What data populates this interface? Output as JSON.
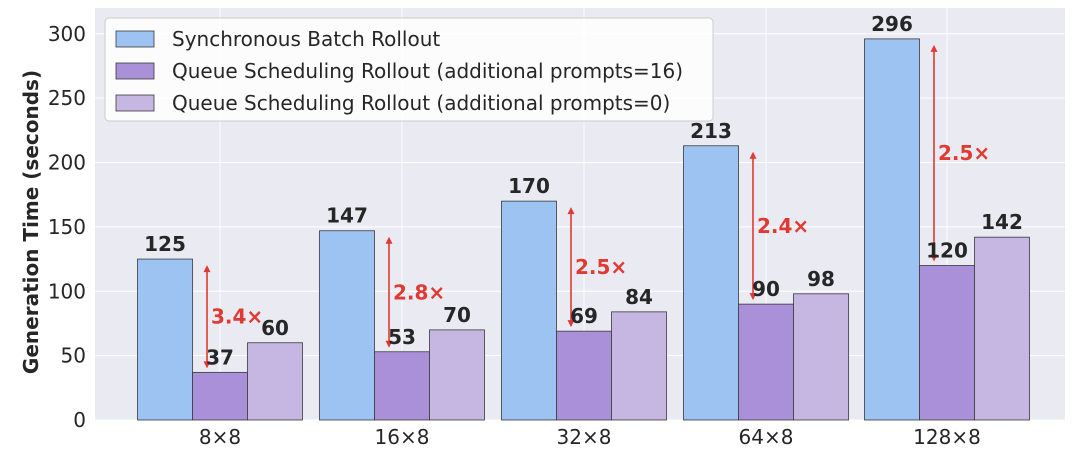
{
  "chart_data": {
    "type": "bar",
    "title": "",
    "xlabel": "",
    "ylabel": "Generation Time (seconds)",
    "ylim": [
      0,
      320
    ],
    "yticks": [
      0,
      50,
      100,
      150,
      200,
      250,
      300
    ],
    "categories": [
      "8×8",
      "16×8",
      "32×8",
      "64×8",
      "128×8"
    ],
    "series": [
      {
        "name": "Synchronous Batch Rollout",
        "values": [
          125,
          147,
          170,
          213,
          296
        ],
        "color": "#9dc3f2"
      },
      {
        "name": "Queue Scheduling Rollout (additional prompts=16)",
        "values": [
          37,
          53,
          69,
          90,
          120
        ],
        "color": "#a990d8"
      },
      {
        "name": "Queue Scheduling Rollout (additional prompts=0)",
        "values": [
          60,
          70,
          84,
          98,
          142
        ],
        "color": "#c6b6e2"
      }
    ],
    "annotations": [
      "3.4×",
      "2.8×",
      "2.5×",
      "2.4×",
      "2.5×"
    ],
    "annotation_color": "#e03a32",
    "plot_background": "#eaeaf2",
    "grid": true,
    "legend_position": "upper-left"
  }
}
